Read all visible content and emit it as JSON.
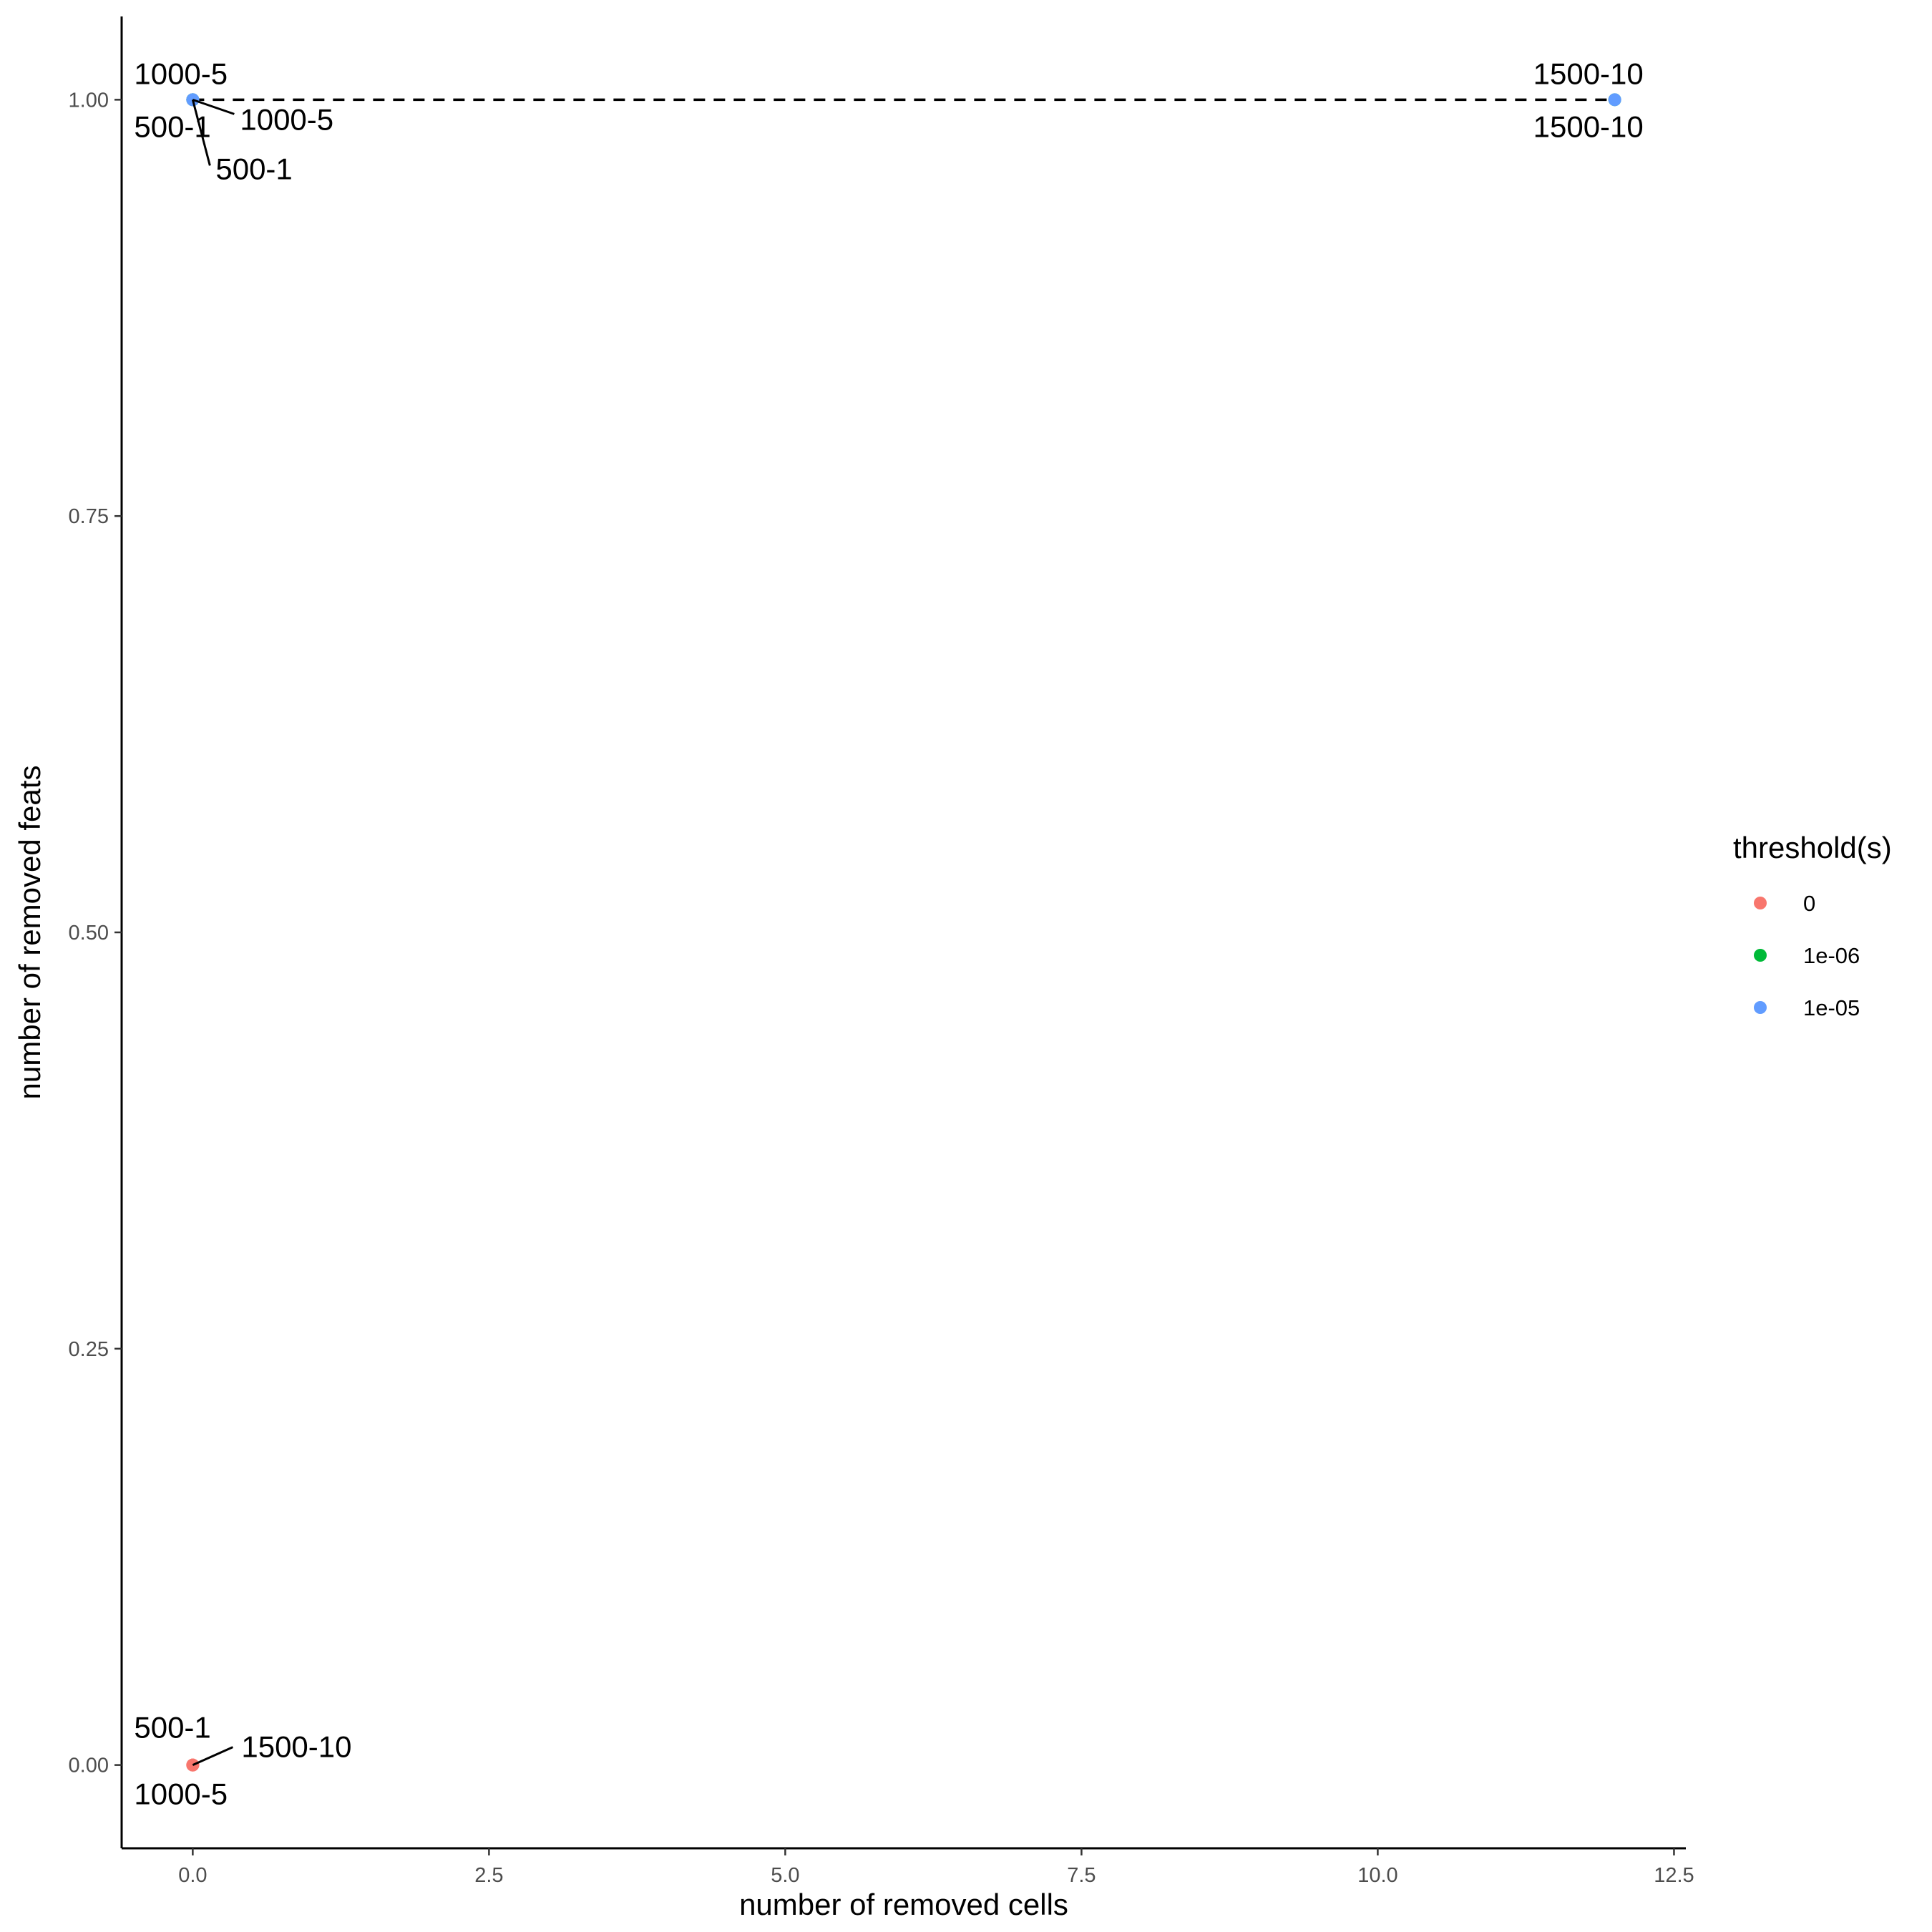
{
  "chart_data": {
    "type": "scatter",
    "xlabel": "number of removed cells",
    "ylabel": "number of removed feats",
    "xlim": [
      -0.6,
      12.6
    ],
    "ylim": [
      -0.05,
      1.05
    ],
    "x_ticks": [
      0.0,
      2.5,
      5.0,
      7.5,
      10.0,
      12.5
    ],
    "x_tick_labels": [
      "0.0",
      "2.5",
      "5.0",
      "7.5",
      "10.0",
      "12.5"
    ],
    "y_ticks": [
      0.0,
      0.25,
      0.5,
      0.75,
      1.0
    ],
    "y_tick_labels": [
      "0.00",
      "0.25",
      "0.50",
      "0.75",
      "1.00"
    ],
    "grid": false,
    "legend_position": "right",
    "legend": {
      "title": "threshold(s)",
      "entries": [
        {
          "label": "0",
          "color": "#F8766D"
        },
        {
          "label": "1e-06",
          "color": "#00BA38"
        },
        {
          "label": "1e-05",
          "color": "#619CFF"
        }
      ]
    },
    "series": [
      {
        "name": "0",
        "color": "#F8766D",
        "points": [
          {
            "x": 0,
            "y": 0,
            "label": "500-1"
          },
          {
            "x": 0,
            "y": 0,
            "label": "1000-5"
          },
          {
            "x": 0,
            "y": 0,
            "label": "1500-10"
          }
        ]
      },
      {
        "name": "1e-06",
        "color": "#00BA38",
        "points": [
          {
            "x": 0,
            "y": 1,
            "label": "500-1"
          },
          {
            "x": 0,
            "y": 1,
            "label": "1000-5"
          },
          {
            "x": 12,
            "y": 1,
            "label": "1500-10"
          }
        ]
      },
      {
        "name": "1e-05",
        "color": "#619CFF",
        "points": [
          {
            "x": 0,
            "y": 1,
            "label": "500-1"
          },
          {
            "x": 0,
            "y": 1,
            "label": "1000-5"
          },
          {
            "x": 12,
            "y": 1,
            "label": "1500-10"
          }
        ]
      }
    ],
    "reference_line": {
      "y": 1,
      "x_from": 0,
      "x_to": 12,
      "style": "dashed"
    }
  }
}
